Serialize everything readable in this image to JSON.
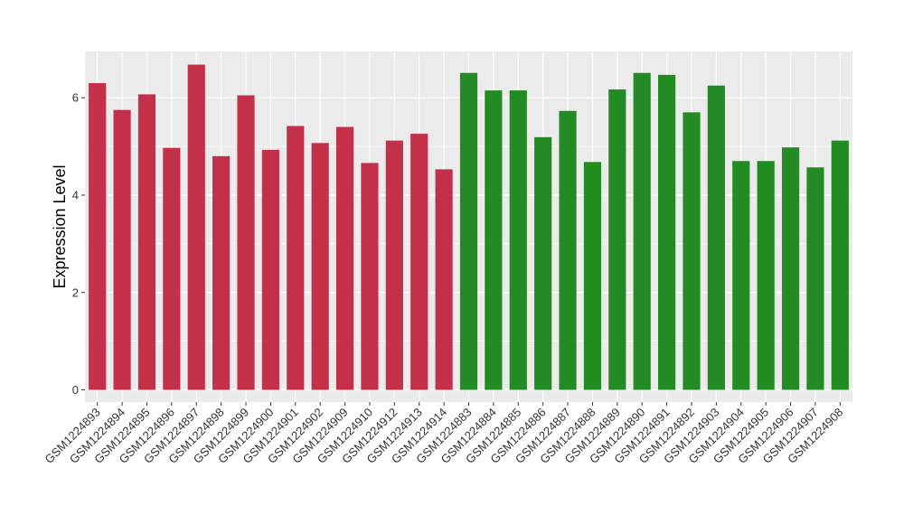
{
  "chart_data": {
    "type": "bar",
    "title": "",
    "xlabel": "",
    "ylabel": "Expression Level",
    "ylim": [
      -0.25,
      6.95
    ],
    "yticks": [
      0,
      2,
      4,
      6
    ],
    "grid": true,
    "panel_background": "#ebebeb",
    "grid_color": "#ffffff",
    "categories": [
      "GSM1224893",
      "GSM1224894",
      "GSM1224895",
      "GSM1224896",
      "GSM1224897",
      "GSM1224898",
      "GSM1224899",
      "GSM1224900",
      "GSM1224901",
      "GSM1224902",
      "GSM1224909",
      "GSM1224910",
      "GSM1224912",
      "GSM1224913",
      "GSM1224914",
      "GSM1224883",
      "GSM1224884",
      "GSM1224885",
      "GSM1224886",
      "GSM1224887",
      "GSM1224888",
      "GSM1224889",
      "GSM1224890",
      "GSM1224891",
      "GSM1224892",
      "GSM1224903",
      "GSM1224904",
      "GSM1224905",
      "GSM1224906",
      "GSM1224907",
      "GSM1224908"
    ],
    "values": [
      6.3,
      5.75,
      6.07,
      4.97,
      6.68,
      4.8,
      6.05,
      4.93,
      5.42,
      5.07,
      5.4,
      4.66,
      5.12,
      5.26,
      4.53,
      6.51,
      6.15,
      6.15,
      5.19,
      5.73,
      4.68,
      6.17,
      6.51,
      6.47,
      5.7,
      6.25,
      4.7,
      4.7,
      4.98,
      4.57,
      5.12
    ],
    "groups": [
      "a",
      "a",
      "a",
      "a",
      "a",
      "a",
      "a",
      "a",
      "a",
      "a",
      "a",
      "a",
      "a",
      "a",
      "a",
      "b",
      "b",
      "b",
      "b",
      "b",
      "b",
      "b",
      "b",
      "b",
      "b",
      "b",
      "b",
      "b",
      "b",
      "b",
      "b"
    ],
    "group_colors": {
      "a": "#c3304a",
      "b": "#228b22"
    }
  }
}
